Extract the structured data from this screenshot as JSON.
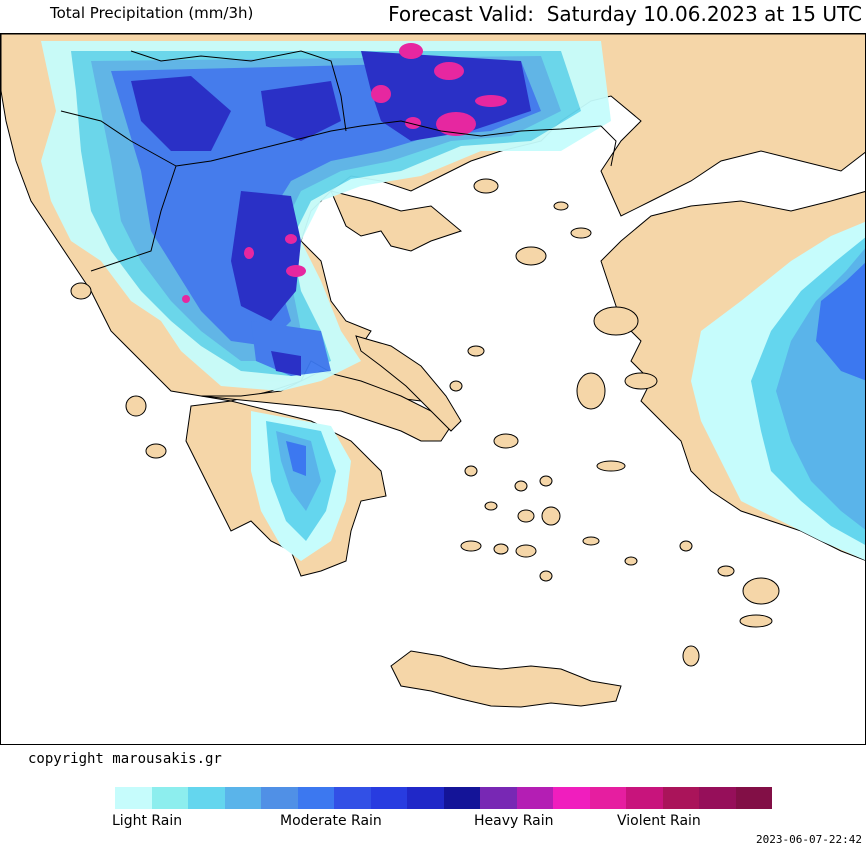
{
  "header": {
    "title": "Total Precipitation (mm/3h)",
    "forecast": "Forecast Valid:  Saturday 10.06.2023 at 15 UTC"
  },
  "footer": {
    "copyright": "copyright marousakis.gr",
    "timestamp": "2023-06-07-22:42"
  },
  "legend": {
    "labels": [
      "Light Rain",
      "Moderate Rain",
      "Heavy Rain",
      "Violent Rain"
    ],
    "colors": [
      "#c6fcfc",
      "#8deeee",
      "#64d6ee",
      "#5ab4ea",
      "#5090e6",
      "#3c78f0",
      "#3250e6",
      "#283ce0",
      "#2028c8",
      "#141498",
      "#7828b4",
      "#b41eb4",
      "#f01ebe",
      "#e61ea0",
      "#c8147c",
      "#aa145a",
      "#960f5a",
      "#820f46"
    ]
  },
  "map_colors": {
    "land": "#f5d6a8",
    "sea": "#ffffff",
    "light": "#c6fcfc",
    "cyan": "#64d6ee",
    "mid": "#5ab4ea",
    "blue": "#3c78f0",
    "dark": "#2028c8",
    "magenta": "#e61ea0"
  }
}
